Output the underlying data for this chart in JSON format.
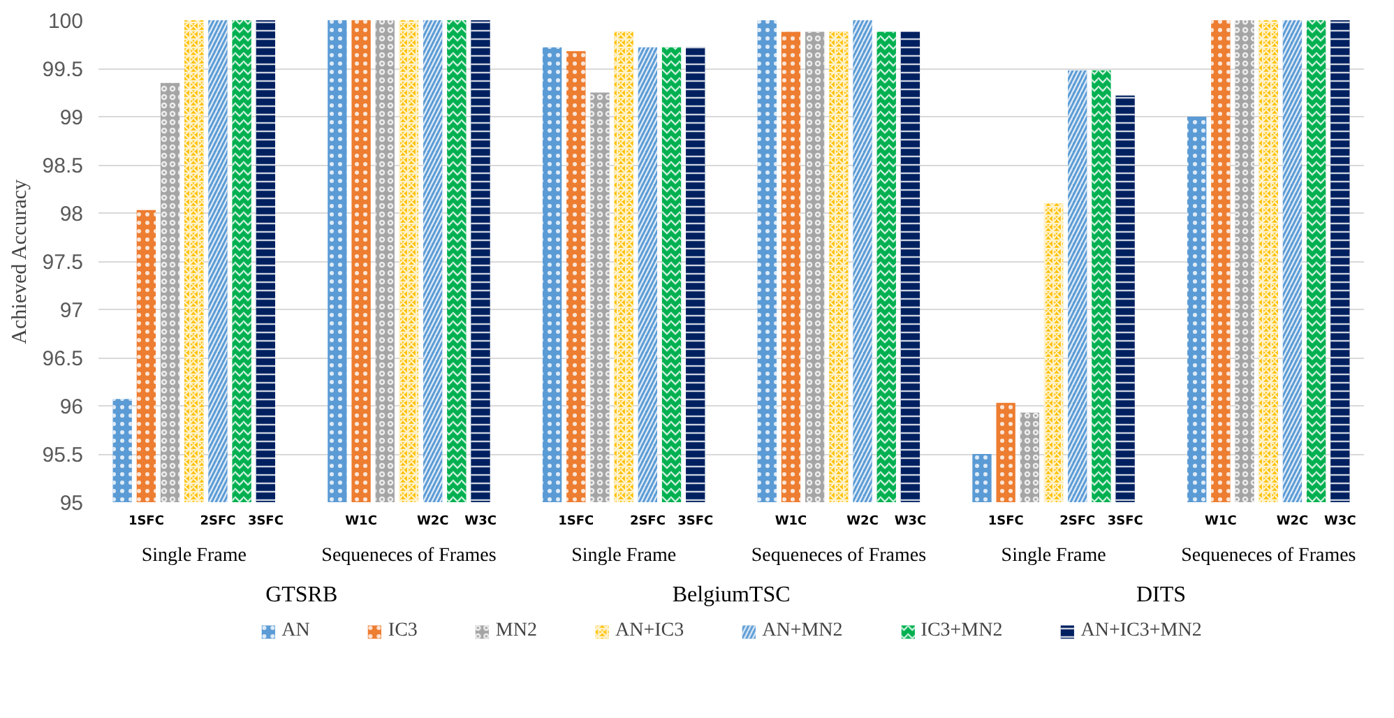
{
  "chart_data": {
    "type": "bar",
    "ylabel": "Achieved Accuracy",
    "categories": [
      "Single Frame",
      "Sequeneces of Frames",
      "Single Frame",
      "Sequeneces of Frames",
      "Single Frame",
      "Sequeneces of Frames"
    ],
    "series": [
      {
        "name": "AN",
        "color": "#5b9bd5",
        "values": [
          96.07,
          100,
          99.72,
          100,
          95.5,
          99.0
        ]
      },
      {
        "name": "IC3",
        "color": "#ed7d31",
        "values": [
          98.03,
          100,
          99.68,
          99.88,
          96.03,
          100
        ]
      },
      {
        "name": "MN2",
        "color": "#a5a5a5",
        "values": [
          99.35,
          100,
          99.25,
          99.88,
          95.93,
          100
        ]
      },
      {
        "name": "AN+IC3",
        "color": "#ffc000",
        "values": [
          100,
          100,
          99.88,
          99.88,
          98.1,
          100
        ]
      },
      {
        "name": "AN+MN2",
        "color": "#5b9bd5",
        "values": [
          100,
          100,
          99.72,
          100,
          99.48,
          100
        ]
      },
      {
        "name": "IC3+MN2",
        "color": "#00b050",
        "values": [
          100,
          100,
          99.72,
          99.88,
          99.48,
          100
        ]
      },
      {
        "name": "AN+IC3+MN2",
        "color": "#002060",
        "values": [
          100,
          100,
          99.72,
          99.88,
          99.22,
          100
        ]
      }
    ],
    "annotations": [
      "GTSRB",
      "BelgiumTSC",
      "DITS",
      "1SFC",
      "2SFC",
      "3SFC",
      "W1C",
      "W2C",
      "W3C",
      "1SFC",
      "2SFC",
      "3SFC",
      "W1C",
      "W2C",
      "W3C",
      "1SFC",
      "2SFC",
      "3SFC",
      "W1C",
      "W2C",
      "W3C"
    ],
    "ylim": [
      95,
      100
    ],
    "yticks": [
      95,
      95.5,
      96,
      96.5,
      97,
      97.5,
      98,
      98.5,
      99,
      99.5,
      100
    ],
    "grid": "y",
    "legend": "bottom"
  }
}
